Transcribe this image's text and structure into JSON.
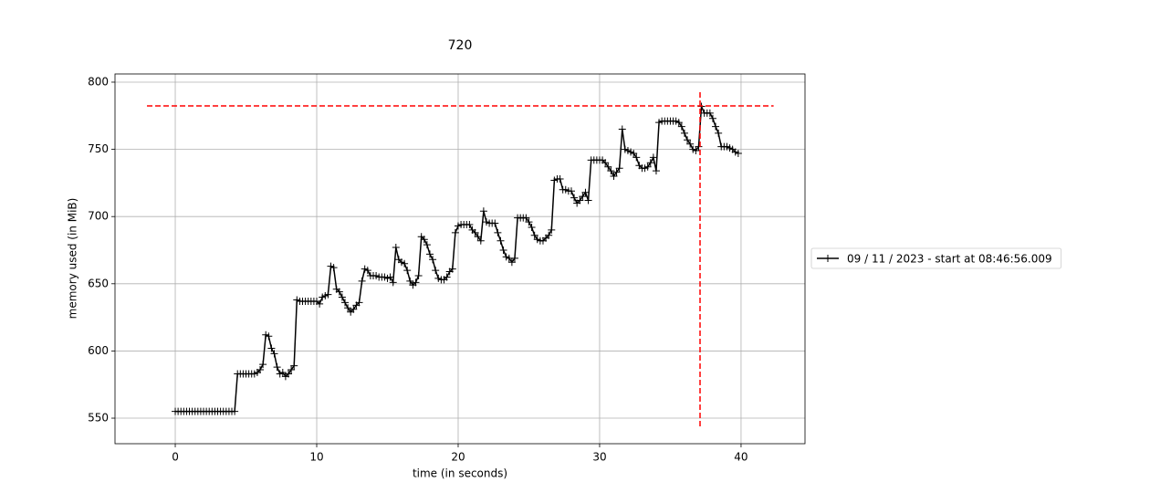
{
  "chart_data": {
    "type": "line",
    "title": "720",
    "x_label": "time (in seconds)",
    "y_label": "memory used (in MiB)",
    "x": [
      0,
      0.2,
      0.4,
      0.6,
      0.8,
      1,
      1.2,
      1.4,
      1.6,
      1.8,
      2,
      2.2,
      2.4,
      2.6,
      2.8,
      3,
      3.2,
      3.4,
      3.6,
      3.8,
      4,
      4.2,
      4.4,
      4.6,
      4.8,
      5,
      5.2,
      5.4,
      5.6,
      5.8,
      6,
      6.2,
      6.4,
      6.6,
      6.8,
      7,
      7.2,
      7.4,
      7.6,
      7.8,
      8,
      8.2,
      8.4,
      8.6,
      8.8,
      9,
      9.2,
      9.4,
      9.6,
      9.8,
      10,
      10.2,
      10.4,
      10.6,
      10.8,
      11,
      11.2,
      11.4,
      11.6,
      11.8,
      12,
      12.2,
      12.4,
      12.6,
      12.8,
      13,
      13.2,
      13.4,
      13.6,
      13.8,
      14,
      14.2,
      14.4,
      14.6,
      14.8,
      15,
      15.2,
      15.4,
      15.6,
      15.8,
      16,
      16.2,
      16.4,
      16.6,
      16.8,
      17,
      17.2,
      17.4,
      17.6,
      17.8,
      18,
      18.2,
      18.4,
      18.6,
      18.8,
      19,
      19.2,
      19.4,
      19.6,
      19.8,
      20,
      20.2,
      20.4,
      20.6,
      20.8,
      21,
      21.2,
      21.4,
      21.6,
      21.8,
      22,
      22.2,
      22.4,
      22.6,
      22.8,
      23,
      23.2,
      23.4,
      23.6,
      23.8,
      24,
      24.2,
      24.4,
      24.6,
      24.8,
      25,
      25.2,
      25.4,
      25.6,
      25.8,
      26,
      26.2,
      26.4,
      26.6,
      26.8,
      27,
      27.2,
      27.4,
      27.6,
      27.8,
      28,
      28.2,
      28.4,
      28.6,
      28.8,
      29,
      29.2,
      29.4,
      29.6,
      29.8,
      30,
      30.2,
      30.4,
      30.6,
      30.8,
      31,
      31.2,
      31.4,
      31.6,
      31.8,
      32,
      32.2,
      32.4,
      32.6,
      32.8,
      33,
      33.2,
      33.4,
      33.6,
      33.8,
      34,
      34.2,
      34.4,
      34.6,
      34.8,
      35,
      35.2,
      35.4,
      35.6,
      35.8,
      36,
      36.2,
      36.4,
      36.6,
      36.8,
      37,
      37.2,
      37.4,
      37.6,
      37.8,
      38,
      38.2,
      38.4,
      38.6,
      38.8,
      39,
      39.2,
      39.4,
      39.6,
      39.8
    ],
    "series": [
      {
        "name": "09 / 11 / 2023 - start at 08:46:56.009",
        "color": "#000000",
        "marker": "+",
        "values": [
          555,
          555,
          555,
          555,
          555,
          555,
          555,
          555,
          555,
          555,
          555,
          555,
          555,
          555,
          555,
          555,
          555,
          555,
          555,
          555,
          555,
          555,
          583,
          583,
          583,
          583,
          583,
          583,
          583,
          584,
          586,
          590,
          612,
          611,
          602,
          598,
          588,
          583,
          584,
          581,
          583,
          586,
          589,
          638,
          637,
          637,
          637,
          637,
          637,
          637,
          637,
          635,
          640,
          641,
          642,
          663,
          662,
          646,
          644,
          640,
          636,
          632,
          629,
          631,
          634,
          636,
          652,
          661,
          660,
          656,
          656,
          656,
          655,
          655,
          655,
          654,
          655,
          651,
          677,
          668,
          666,
          665,
          660,
          652,
          649,
          651,
          656,
          685,
          683,
          679,
          672,
          668,
          660,
          654,
          653,
          653,
          655,
          659,
          661,
          688,
          693,
          694,
          694,
          694,
          694,
          690,
          688,
          685,
          682,
          704,
          696,
          695,
          695,
          695,
          688,
          682,
          675,
          670,
          669,
          666,
          669,
          699,
          699,
          699,
          699,
          696,
          692,
          686,
          683,
          682,
          682,
          684,
          686,
          690,
          727,
          728,
          728,
          720,
          720,
          719,
          719,
          714,
          710,
          712,
          715,
          718,
          712,
          742,
          742,
          742,
          742,
          742,
          740,
          737,
          734,
          730,
          733,
          736,
          765,
          750,
          749,
          748,
          747,
          744,
          738,
          736,
          736,
          737,
          740,
          744,
          734,
          770,
          771,
          771,
          771,
          771,
          771,
          771,
          770,
          767,
          762,
          757,
          754,
          750,
          749,
          752,
          782,
          777,
          777,
          777,
          773,
          767,
          762,
          752,
          752,
          752,
          751,
          750,
          748,
          747
        ]
      }
    ],
    "max_lines": {
      "color": "#ff0000",
      "hline": {
        "y": 782.3,
        "xmin": -2,
        "xmax": 42.3
      },
      "vline": {
        "x": 37.1,
        "ymin": 543.9,
        "ymax": 793.9
      }
    },
    "xlim": [
      -4.26,
      44.52
    ],
    "ylim": [
      531,
      806.1
    ],
    "xticks": [
      0,
      10,
      20,
      30,
      40
    ],
    "yticks": [
      550,
      600,
      650,
      700,
      750,
      800
    ],
    "grid": true,
    "legend": "outside-right"
  }
}
